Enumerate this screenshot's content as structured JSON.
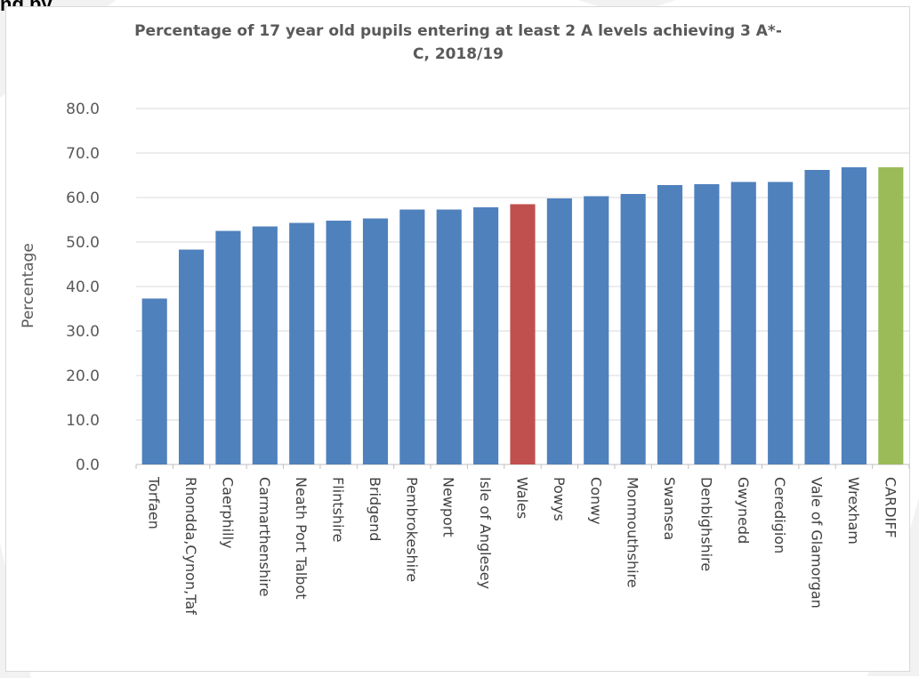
{
  "page": {
    "top_fragment": "ng by"
  },
  "chart_data": {
    "type": "bar",
    "title": "Percentage of 17 year old pupils entering at least 2 A levels achieving 3 A*-C, 2018/19",
    "title_lines": [
      "Percentage of 17 year old pupils entering at least 2 A levels achieving 3 A*-",
      "C, 2018/19"
    ],
    "xlabel": "",
    "ylabel": "Percentage",
    "ylim": [
      0,
      80
    ],
    "yticks": [
      "0.0",
      "10.0",
      "20.0",
      "30.0",
      "40.0",
      "50.0",
      "60.0",
      "70.0",
      "80.0"
    ],
    "grid": true,
    "categories": [
      "Torfaen",
      "Rhondda,Cynon,Taf",
      "Caerphilly",
      "Carmarthenshire",
      "Neath Port Talbot",
      "Flintshire",
      "Bridgend",
      "Pembrokeshire",
      "Newport",
      "Isle of Anglesey",
      "Wales",
      "Powys",
      "Conwy",
      "Monmouthshire",
      "Swansea",
      "Denbighshire",
      "Gwynedd",
      "Ceredigion",
      "Vale of Glamorgan",
      "Wrexham",
      "CARDIFF"
    ],
    "values": [
      37.3,
      48.3,
      52.5,
      53.5,
      54.3,
      54.8,
      55.3,
      57.3,
      57.3,
      57.8,
      58.5,
      59.8,
      60.3,
      60.8,
      62.8,
      63.0,
      63.5,
      63.5,
      66.2,
      66.8,
      66.8
    ],
    "colors": {
      "default": "#4f81bd",
      "Wales": "#c0504d",
      "CARDIFF": "#9bbb59"
    }
  }
}
